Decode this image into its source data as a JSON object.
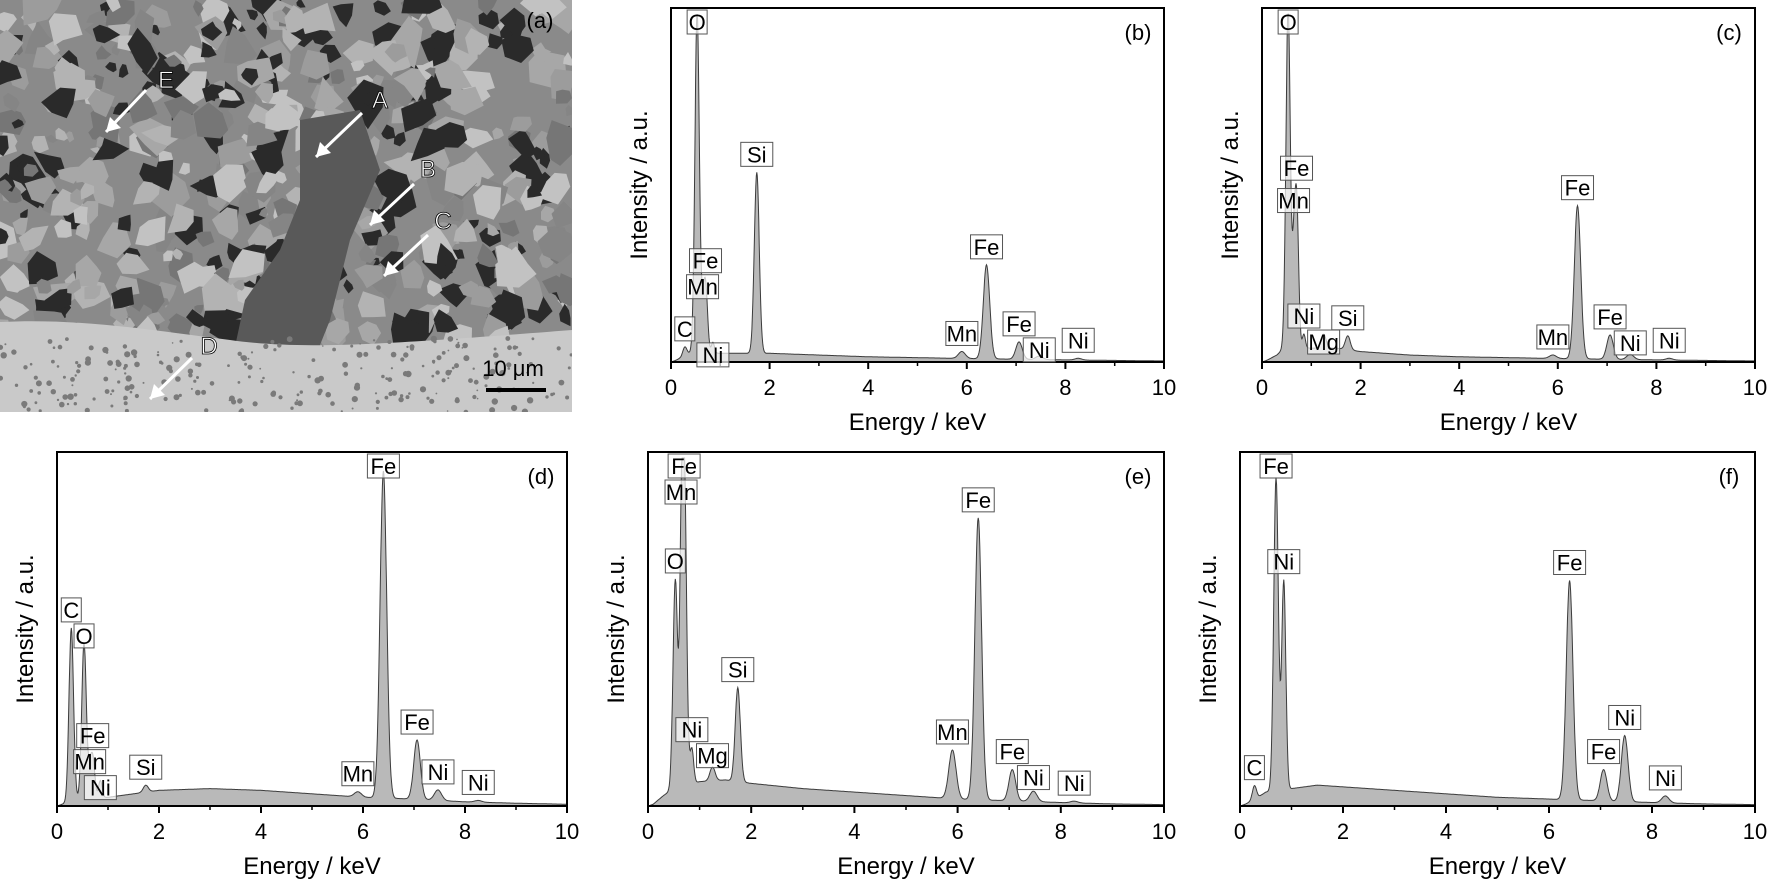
{
  "micrograph": {
    "panel_label": "(a)",
    "scale_bar": "10 μm",
    "markers": [
      "A",
      "B",
      "C",
      "D",
      "E"
    ]
  },
  "colors": {
    "fill": "#b9b9b9",
    "stroke": "#3c3c3c",
    "axis": "#000000"
  },
  "chart_data": [
    {
      "panel": "(b)",
      "type": "area",
      "xlabel": "Energy / keV",
      "ylabel": "Intensity / a.u.",
      "xlim": [
        0,
        10
      ],
      "ylim": [
        0,
        100
      ],
      "xticks": [
        0,
        2,
        4,
        6,
        8,
        10
      ],
      "background": [
        [
          0.1,
          0.5
        ],
        [
          0.3,
          2
        ],
        [
          0.45,
          3
        ],
        [
          1,
          2.5
        ],
        [
          2,
          2.5
        ],
        [
          3,
          2
        ],
        [
          4,
          1.5
        ],
        [
          6,
          1
        ],
        [
          8,
          0.6
        ],
        [
          10,
          0.3
        ]
      ],
      "peaks": [
        {
          "label": "C",
          "x": 0.28,
          "y": 2.5,
          "w": 0.04
        },
        {
          "label": "O",
          "x": 0.53,
          "y": 98,
          "w": 0.045
        },
        {
          "label": "Fe",
          "x": 0.7,
          "y": 20,
          "w": 0.04
        },
        {
          "label": "Mn",
          "x": 0.64,
          "y": 8,
          "w": 0.03
        },
        {
          "label": "Ni",
          "x": 0.85,
          "y": 3,
          "w": 0.03
        },
        {
          "label": "Si",
          "x": 1.74,
          "y": 52,
          "w": 0.05
        },
        {
          "label": "Mn",
          "x": 5.9,
          "y": 2,
          "w": 0.07
        },
        {
          "label": "Fe",
          "x": 6.4,
          "y": 27,
          "w": 0.065
        },
        {
          "label": "Fe",
          "x": 7.06,
          "y": 5,
          "w": 0.065
        },
        {
          "label": "Ni",
          "x": 7.47,
          "y": 1,
          "w": 0.07
        },
        {
          "label": "Ni",
          "x": 8.26,
          "y": 0.5,
          "w": 0.07
        }
      ]
    },
    {
      "panel": "(c)",
      "type": "area",
      "xlabel": "Energy / keV",
      "ylabel": "Intensity / a.u.",
      "xlim": [
        0,
        10
      ],
      "ylim": [
        0,
        100
      ],
      "xticks": [
        0,
        2,
        4,
        6,
        8,
        10
      ],
      "background": [
        [
          0.1,
          0.5
        ],
        [
          0.3,
          2
        ],
        [
          0.45,
          4
        ],
        [
          1,
          4
        ],
        [
          1.5,
          4
        ],
        [
          2,
          3
        ],
        [
          3,
          2
        ],
        [
          4,
          1.5
        ],
        [
          6,
          1
        ],
        [
          8,
          0.6
        ],
        [
          10,
          0.3
        ]
      ],
      "peaks": [
        {
          "label": "O",
          "x": 0.53,
          "y": 98,
          "w": 0.045
        },
        {
          "label": "Fe",
          "x": 0.7,
          "y": 44,
          "w": 0.04
        },
        {
          "label": "Mn",
          "x": 0.64,
          "y": 18,
          "w": 0.03
        },
        {
          "label": "Ni",
          "x": 0.85,
          "y": 4,
          "w": 0.03
        },
        {
          "label": "Mg",
          "x": 1.25,
          "y": 4,
          "w": 0.05
        },
        {
          "label": "Si",
          "x": 1.74,
          "y": 4,
          "w": 0.05
        },
        {
          "label": "Mn",
          "x": 5.9,
          "y": 1,
          "w": 0.07
        },
        {
          "label": "Fe",
          "x": 6.4,
          "y": 44,
          "w": 0.065
        },
        {
          "label": "Fe",
          "x": 7.06,
          "y": 7,
          "w": 0.065
        },
        {
          "label": "Ni",
          "x": 7.47,
          "y": 1.5,
          "w": 0.07
        },
        {
          "label": "Ni",
          "x": 8.26,
          "y": 0.5,
          "w": 0.07
        }
      ]
    },
    {
      "panel": "(d)",
      "type": "area",
      "xlabel": "Energy / keV",
      "ylabel": "Intensity / a.u.",
      "xlim": [
        0,
        10
      ],
      "ylim": [
        0,
        100
      ],
      "xticks": [
        0,
        2,
        4,
        6,
        8,
        10
      ],
      "background": [
        [
          0.1,
          0.5
        ],
        [
          0.5,
          2
        ],
        [
          1,
          2.5
        ],
        [
          2,
          4.5
        ],
        [
          3,
          5
        ],
        [
          4,
          4.5
        ],
        [
          5,
          3.5
        ],
        [
          6,
          2.5
        ],
        [
          7,
          2
        ],
        [
          8,
          1.2
        ],
        [
          9,
          0.8
        ],
        [
          10,
          0.5
        ]
      ],
      "peaks": [
        {
          "label": "C",
          "x": 0.28,
          "y": 50,
          "w": 0.045
        },
        {
          "label": "O",
          "x": 0.53,
          "y": 45,
          "w": 0.045
        },
        {
          "label": "Fe",
          "x": 0.7,
          "y": 12,
          "w": 0.04
        },
        {
          "label": "Mn",
          "x": 0.64,
          "y": 6,
          "w": 0.03
        },
        {
          "label": "Ni",
          "x": 0.85,
          "y": 5,
          "w": 0.035
        },
        {
          "label": "Si",
          "x": 1.74,
          "y": 2,
          "w": 0.05
        },
        {
          "label": "Mn",
          "x": 5.9,
          "y": 1.5,
          "w": 0.07
        },
        {
          "label": "Fe",
          "x": 6.4,
          "y": 94,
          "w": 0.065
        },
        {
          "label": "Fe",
          "x": 7.06,
          "y": 17,
          "w": 0.065
        },
        {
          "label": "Ni",
          "x": 7.47,
          "y": 3,
          "w": 0.07
        },
        {
          "label": "Ni",
          "x": 8.26,
          "y": 0.5,
          "w": 0.07
        }
      ]
    },
    {
      "panel": "(e)",
      "type": "area",
      "xlabel": "Energy / keV",
      "ylabel": "Intensity / a.u.",
      "xlim": [
        0,
        10
      ],
      "ylim": [
        0,
        100
      ],
      "xticks": [
        0,
        2,
        4,
        6,
        8,
        10
      ],
      "background": [
        [
          0.1,
          0.5
        ],
        [
          0.3,
          3
        ],
        [
          0.5,
          5
        ],
        [
          1,
          7
        ],
        [
          1.5,
          7.5
        ],
        [
          2,
          6.5
        ],
        [
          3,
          5
        ],
        [
          4,
          4
        ],
        [
          5,
          3
        ],
        [
          6,
          2
        ],
        [
          7,
          1.5
        ],
        [
          8,
          1
        ],
        [
          9,
          0.6
        ],
        [
          10,
          0.4
        ]
      ],
      "peaks": [
        {
          "label": "Fe",
          "x": 0.7,
          "y": 94,
          "w": 0.045
        },
        {
          "label": "O",
          "x": 0.53,
          "y": 60,
          "w": 0.045
        },
        {
          "label": "Mn",
          "x": 0.64,
          "y": 42,
          "w": 0.03
        },
        {
          "label": "Ni",
          "x": 0.85,
          "y": 10,
          "w": 0.035
        },
        {
          "label": "Mg",
          "x": 1.25,
          "y": 4,
          "w": 0.05
        },
        {
          "label": "Si",
          "x": 1.74,
          "y": 27,
          "w": 0.05
        },
        {
          "label": "Mn",
          "x": 5.9,
          "y": 14,
          "w": 0.07
        },
        {
          "label": "Fe",
          "x": 6.4,
          "y": 81,
          "w": 0.065
        },
        {
          "label": "Fe",
          "x": 7.06,
          "y": 9,
          "w": 0.065
        },
        {
          "label": "Ni",
          "x": 7.47,
          "y": 3,
          "w": 0.07
        },
        {
          "label": "Ni",
          "x": 8.26,
          "y": 0.5,
          "w": 0.07
        }
      ]
    },
    {
      "panel": "(f)",
      "type": "area",
      "xlabel": "Energy / keV",
      "ylabel": "Intensity / a.u.",
      "xlim": [
        0,
        10
      ],
      "ylim": [
        0,
        100
      ],
      "xticks": [
        0,
        2,
        4,
        6,
        8,
        10
      ],
      "background": [
        [
          0.1,
          0.5
        ],
        [
          0.3,
          2
        ],
        [
          0.5,
          4
        ],
        [
          1,
          5
        ],
        [
          1.5,
          6
        ],
        [
          2,
          5.5
        ],
        [
          3,
          4.5
        ],
        [
          4,
          3.5
        ],
        [
          5,
          2.5
        ],
        [
          6,
          2
        ],
        [
          7,
          1.5
        ],
        [
          8,
          1
        ],
        [
          9,
          0.6
        ],
        [
          10,
          0.4
        ]
      ],
      "peaks": [
        {
          "label": "C",
          "x": 0.28,
          "y": 4,
          "w": 0.04
        },
        {
          "label": "Fe",
          "x": 0.7,
          "y": 90,
          "w": 0.045
        },
        {
          "label": "Ni",
          "x": 0.85,
          "y": 60,
          "w": 0.04
        },
        {
          "label": "Fe",
          "x": 6.4,
          "y": 63,
          "w": 0.065
        },
        {
          "label": "Fe",
          "x": 7.06,
          "y": 9,
          "w": 0.065
        },
        {
          "label": "Ni",
          "x": 7.47,
          "y": 19,
          "w": 0.065
        },
        {
          "label": "Ni",
          "x": 8.26,
          "y": 2,
          "w": 0.07
        }
      ]
    }
  ]
}
